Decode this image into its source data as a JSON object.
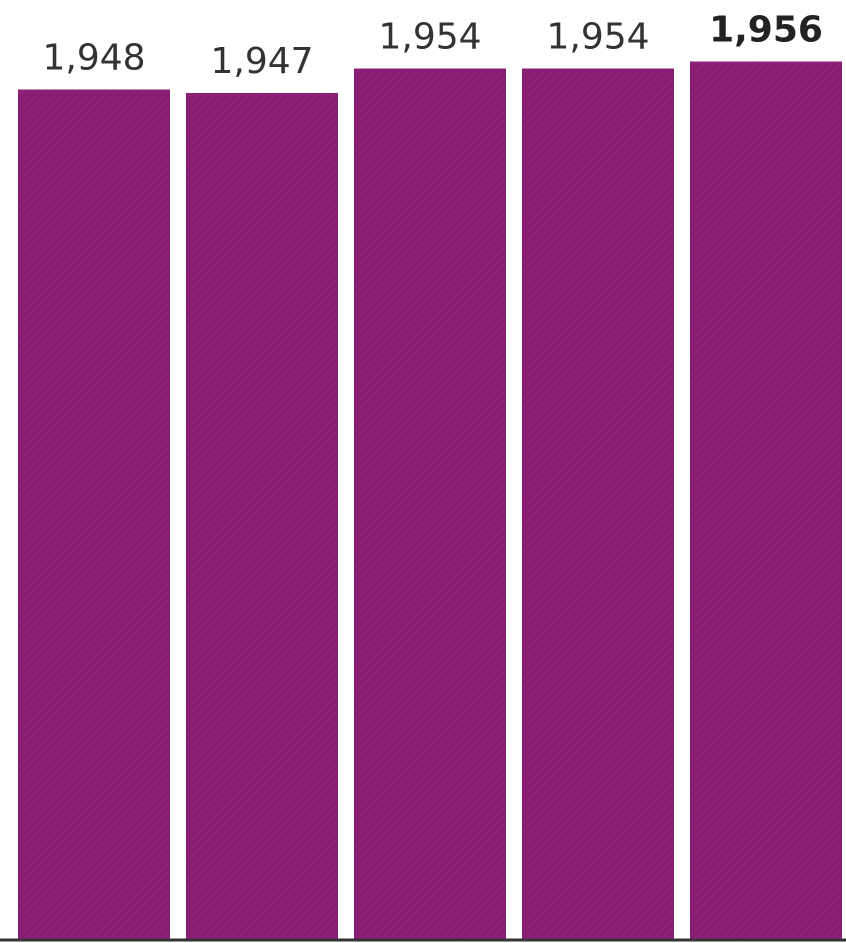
{
  "chart_data": {
    "type": "bar",
    "categories": [
      null,
      null,
      null,
      null,
      null
    ],
    "values": [
      1948,
      1947,
      1954,
      1954,
      1956
    ],
    "value_labels": [
      "1,948",
      "1,947",
      "1,954",
      "1,954",
      "1,956"
    ],
    "color": "#8e1f78",
    "highlight": 4,
    "ylim": [
      1705,
      1965
    ]
  }
}
